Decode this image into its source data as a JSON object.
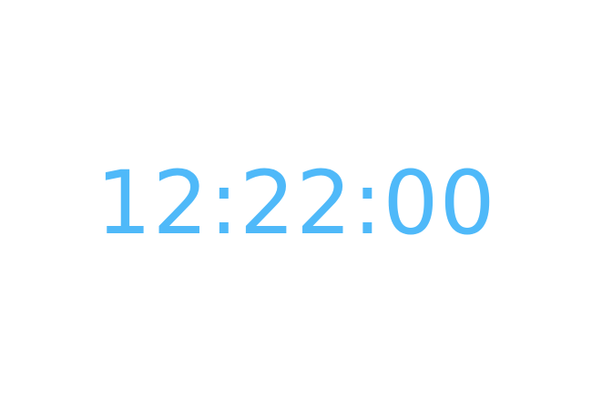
{
  "clock": {
    "time": "12:22:00",
    "color": "#4fb9f9",
    "background": "#ffffff"
  }
}
